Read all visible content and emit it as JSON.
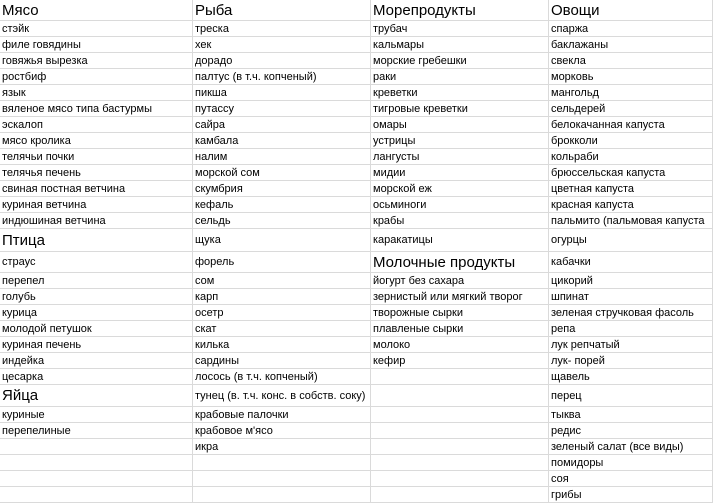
{
  "table": {
    "header": [
      "Мясо",
      "Рыба",
      "Морепродукты",
      "Овощи"
    ],
    "rows": [
      [
        "стэйк",
        "треска",
        "трубач",
        "спаржа"
      ],
      [
        "филе говядины",
        "хек",
        "кальмары",
        "баклажаны"
      ],
      [
        "говяжья вырезка",
        "дорадо",
        "морские гребешки",
        "свекла"
      ],
      [
        "ростбиф",
        "палтус (в  т.ч. копченый)",
        "раки",
        "морковь"
      ],
      [
        "язык",
        "пикша",
        "креветки",
        "мангольд"
      ],
      [
        "вяленое мясо типа бастурмы",
        "путассу",
        "тигровые креветки",
        "сельдерей"
      ],
      [
        "эскалоп",
        "сайра",
        "омары",
        "белокачанная капуста"
      ],
      [
        "мясо кролика",
        "камбала",
        "устрицы",
        "брокколи"
      ],
      [
        "телячьи почки",
        "налим",
        "лангусты",
        "кольраби"
      ],
      [
        "телячья печень",
        "морской сом",
        "мидии",
        "брюссельская капуста"
      ],
      [
        "свиная постная ветчина",
        "скумбрия",
        "морской еж",
        "цветная капуста"
      ],
      [
        "куриная ветчина",
        "кефаль",
        "осьминоги",
        "красная капуста"
      ],
      [
        "индюшиная ветчина",
        "сельдь",
        "крабы",
        "пальмито (пальмовая капуста"
      ],
      [
        "Птица",
        "щука",
        "каракатицы",
        "огурцы"
      ],
      [
        "страус",
        "форель",
        "Молочные продукты",
        "кабачки"
      ],
      [
        "перепел",
        "сом",
        "йогурт без сахара",
        "цикорий"
      ],
      [
        "голубь",
        "карп",
        "зернистый или мягкий творог",
        "шпинат"
      ],
      [
        "курица",
        "осетр",
        "творожные сырки",
        "зеленая стручковая фасоль"
      ],
      [
        "молодой петушок",
        "скат",
        "плавленые сырки",
        "репа"
      ],
      [
        "куриная  печень",
        "килька",
        "молоко",
        "лук репчатый"
      ],
      [
        "индейка",
        "сардины",
        "кефир",
        "лук- порей"
      ],
      [
        "цесарка",
        "лосось (в т.ч. копченый)",
        null,
        "щавель"
      ],
      [
        "Яйца",
        "тунец (в. т.ч. конс. в собств. соку)",
        null,
        "перец"
      ],
      [
        "куриные",
        "крабовые палочки",
        null,
        "тыква"
      ],
      [
        "перепелиные",
        "крабовое м'ясо",
        null,
        "редис"
      ],
      [
        null,
        "икра",
        null,
        "зеленый салат (все виды)"
      ],
      [
        null,
        null,
        null,
        "помидоры"
      ],
      [
        null,
        null,
        null,
        "соя"
      ],
      [
        null,
        null,
        null,
        "грибы"
      ]
    ]
  }
}
